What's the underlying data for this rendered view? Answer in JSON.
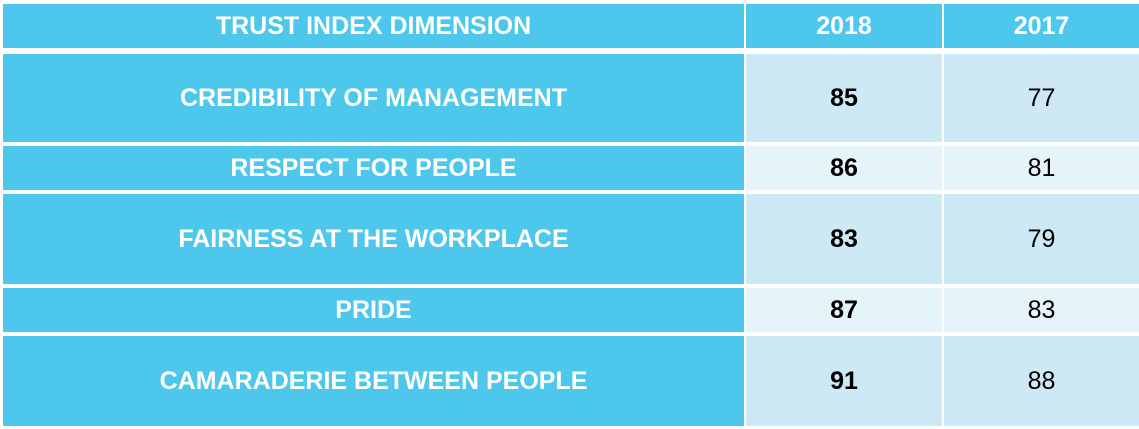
{
  "table": {
    "header": [
      "TRUST INDEX DIMENSION",
      "2018",
      "2017"
    ],
    "rows": [
      [
        "CREDIBILITY OF MANAGEMENT",
        85,
        77
      ],
      [
        "RESPECT FOR PEOPLE",
        86,
        81
      ],
      [
        "FAIRNESS AT THE WORKPLACE",
        83,
        79
      ],
      [
        "PRIDE",
        87,
        83
      ],
      [
        "CAMARADERIE BETWEEN PEOPLE",
        91,
        88
      ]
    ]
  }
}
